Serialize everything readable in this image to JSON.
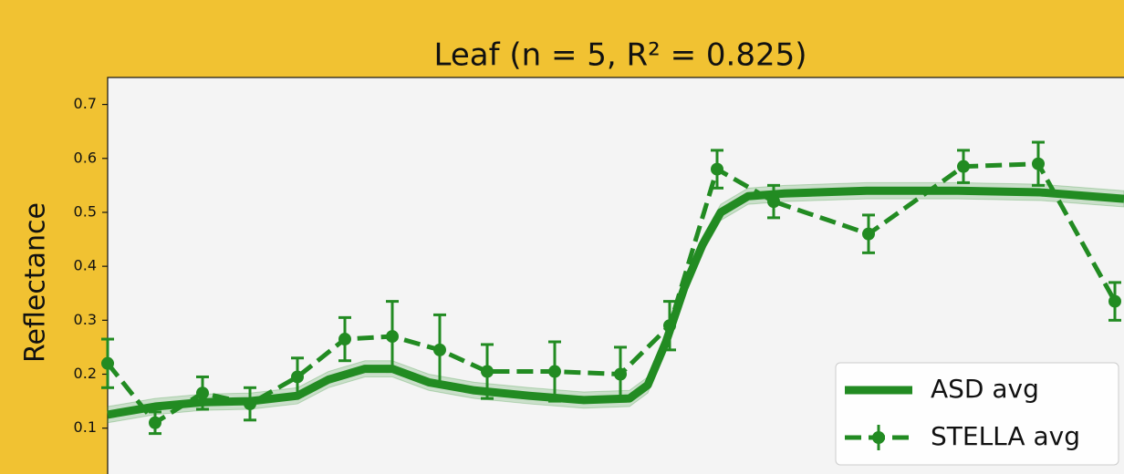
{
  "chart_data": {
    "type": "line",
    "title": "Leaf (n = 5, R² = 0.825)",
    "ylabel": "Reflectance",
    "xlim": [
      400,
      957
    ],
    "ylim": [
      0.015,
      0.75
    ],
    "yticks": [
      0.1,
      0.2,
      0.3,
      0.4,
      0.5,
      0.6,
      0.7
    ],
    "legend": "lower right",
    "series": [
      {
        "name": "ASD avg",
        "color": "#228b22",
        "style": "solid",
        "x": [
          400,
          426,
          452,
          478,
          504,
          521,
          541,
          556,
          576,
          601,
          631,
          661,
          686,
          696,
          706,
          716,
          726,
          736,
          751,
          771,
          816,
          866,
          911,
          957
        ],
        "values": [
          0.125,
          0.14,
          0.148,
          0.15,
          0.16,
          0.19,
          0.21,
          0.21,
          0.185,
          0.17,
          0.16,
          0.152,
          0.155,
          0.18,
          0.26,
          0.36,
          0.44,
          0.5,
          0.53,
          0.535,
          0.54,
          0.54,
          0.537,
          0.525
        ],
        "errors": [
          0.015,
          0.015,
          0.015,
          0.015,
          0.015,
          0.015,
          0.015,
          0.015,
          0.015,
          0.015,
          0.015,
          0.015,
          0.015,
          0.015,
          0.015,
          0.015,
          0.015,
          0.015,
          0.015,
          0.015,
          0.015,
          0.015,
          0.015,
          0.015
        ]
      },
      {
        "name": "STELLA avg",
        "color": "#228b22",
        "style": "dashed",
        "x": [
          400,
          426,
          452,
          478,
          504,
          530,
          556,
          582,
          608,
          645,
          681,
          708,
          734,
          765,
          817,
          869,
          910,
          952
        ],
        "values": [
          0.22,
          0.11,
          0.165,
          0.145,
          0.195,
          0.265,
          0.27,
          0.245,
          0.205,
          0.205,
          0.2,
          0.29,
          0.58,
          0.52,
          0.46,
          0.585,
          0.59,
          0.335
        ],
        "errors": [
          0.045,
          0.02,
          0.03,
          0.03,
          0.035,
          0.04,
          0.065,
          0.065,
          0.05,
          0.055,
          0.05,
          0.045,
          0.035,
          0.03,
          0.035,
          0.03,
          0.04,
          0.035
        ]
      }
    ]
  }
}
